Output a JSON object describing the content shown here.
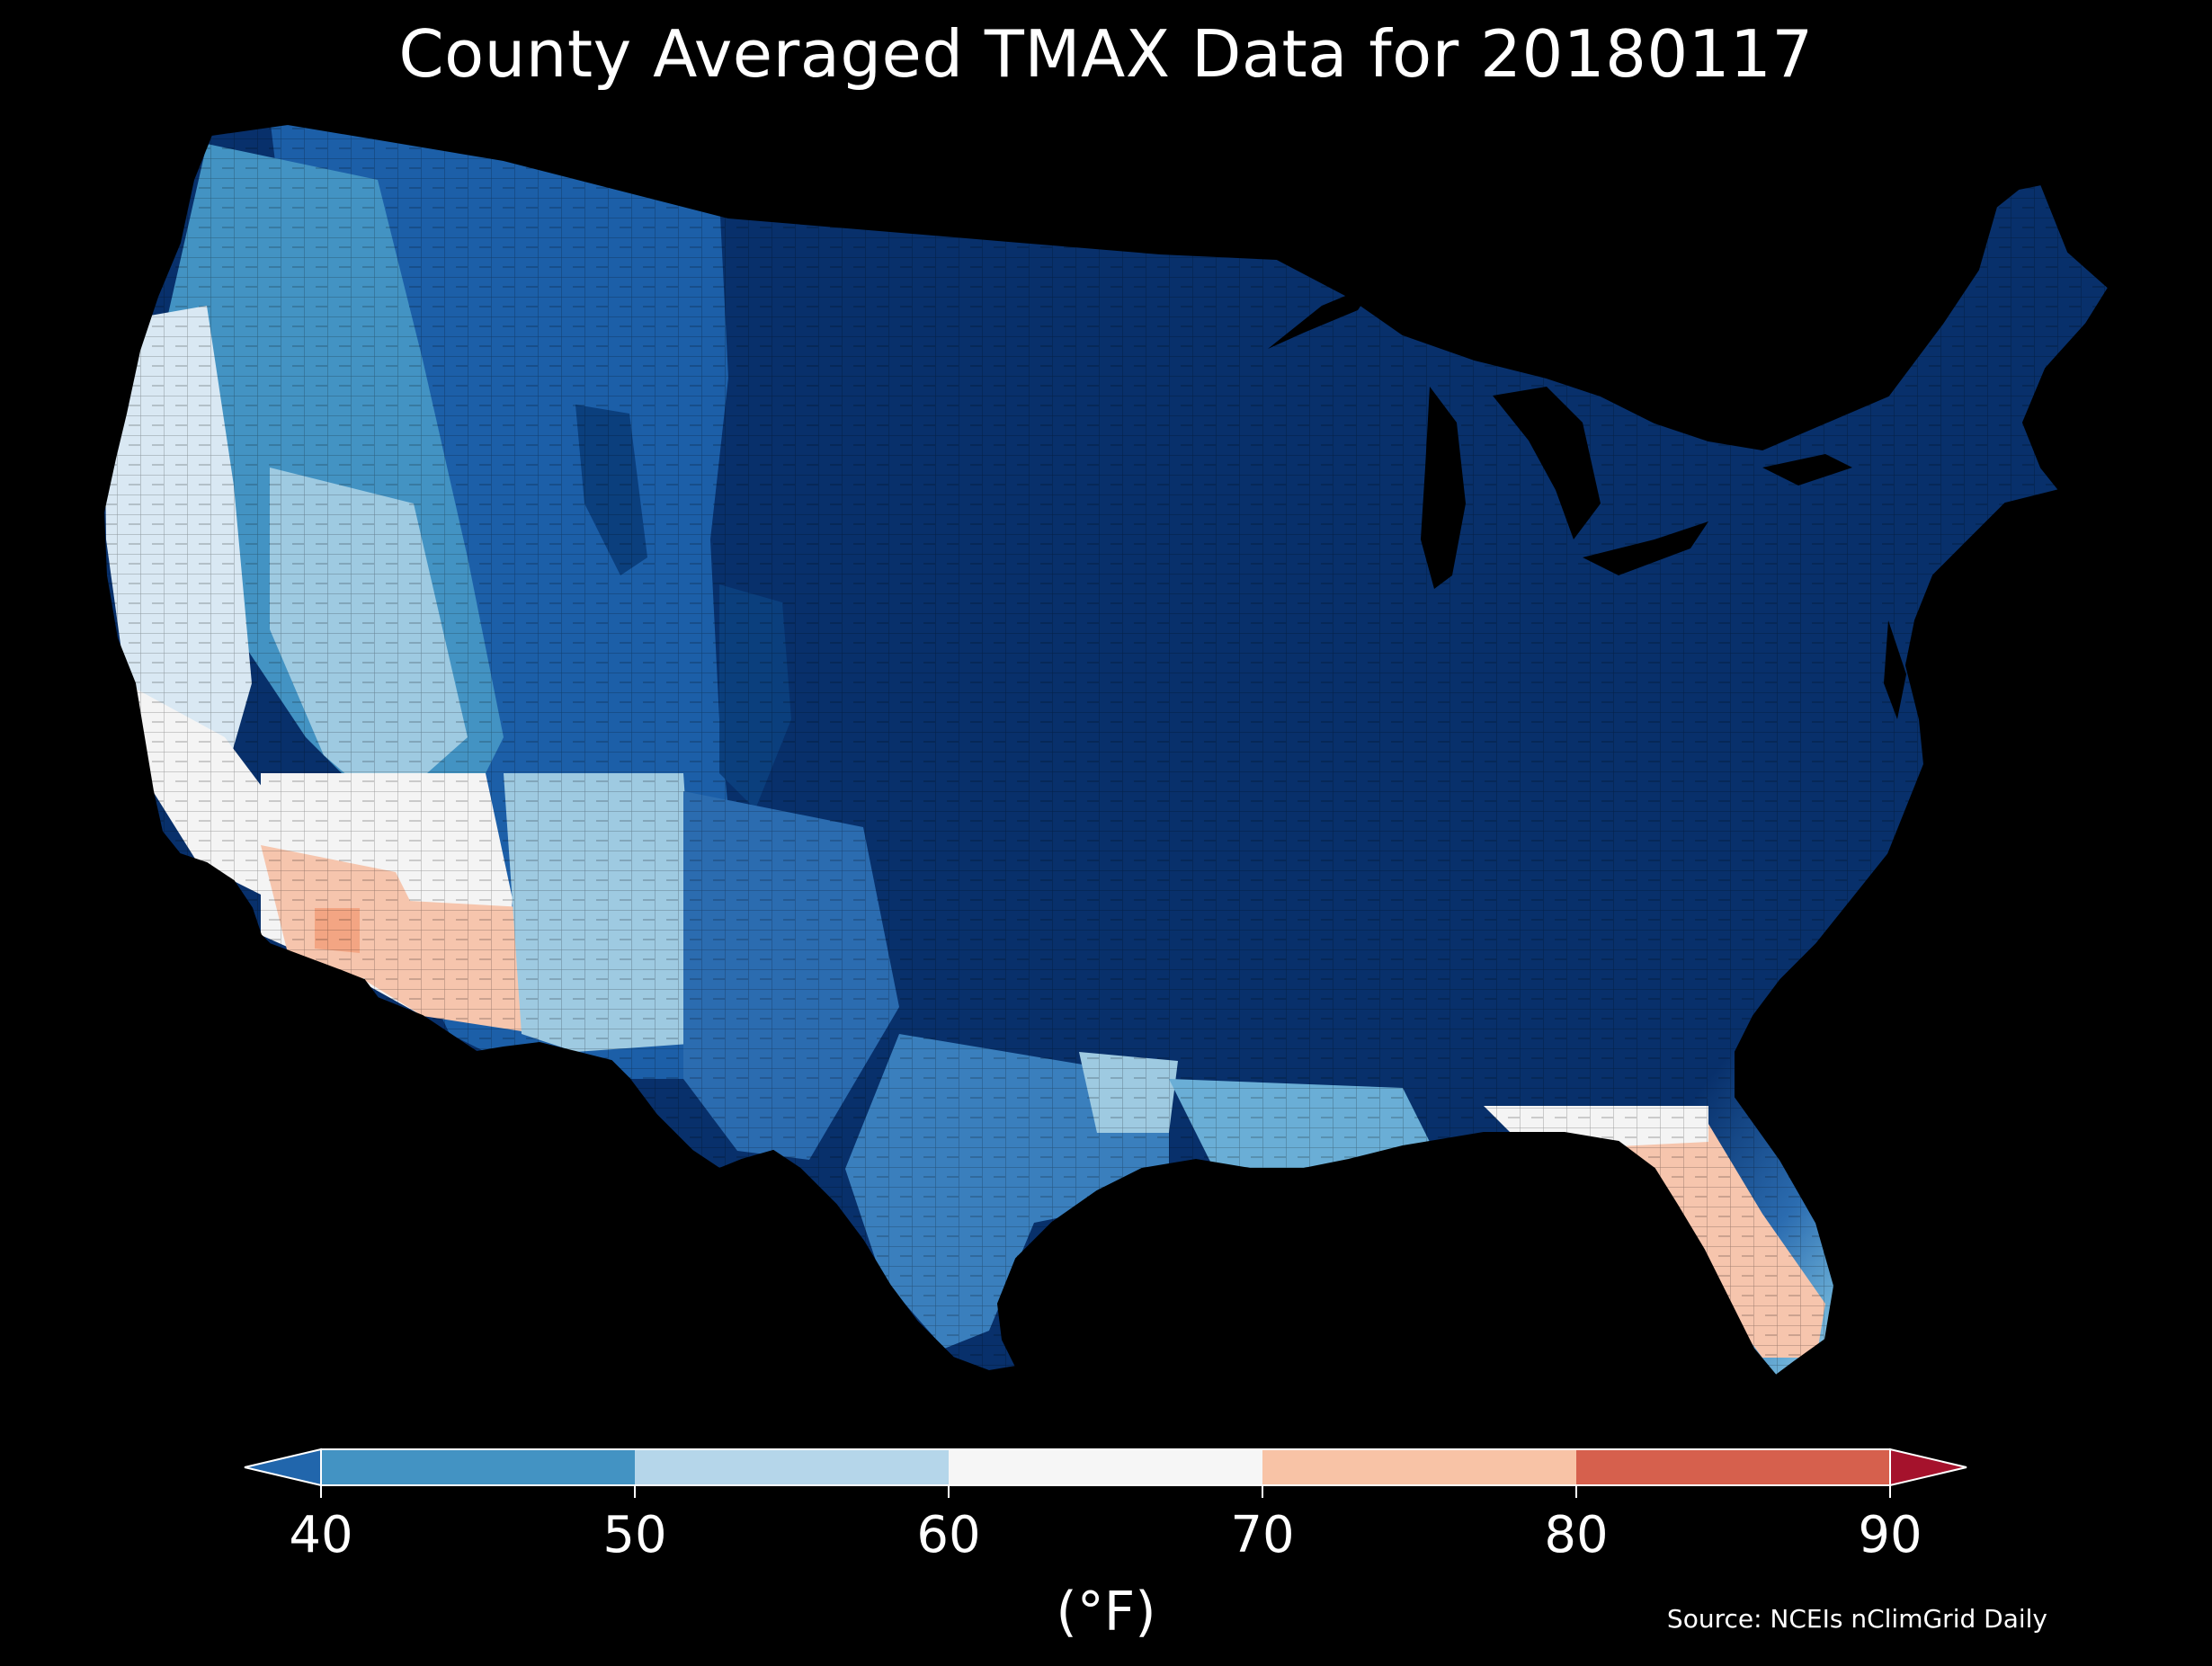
{
  "title": "County Averaged TMAX Data for 20180117",
  "source": "Source: NCEIs nClimGrid Daily",
  "colorbar": {
    "unit_label": "(°F)",
    "ticks": [
      "40",
      "50",
      "60",
      "70",
      "80",
      "90"
    ],
    "bins": [
      {
        "from": 40,
        "to": 50,
        "color": "#4393c3"
      },
      {
        "from": 50,
        "to": 60,
        "color": "#b5d6ea"
      },
      {
        "from": 60,
        "to": 70,
        "color": "#f6f6f6"
      },
      {
        "from": 70,
        "to": 80,
        "color": "#f8c3a6"
      },
      {
        "from": 80,
        "to": 90,
        "color": "#d6604d"
      }
    ],
    "under_color": "#2166ac",
    "over_color": "#a5122c"
  },
  "map": {
    "subject": "contiguous-united-states-counties",
    "colors": {
      "coldest": "#08306b",
      "deep": "#0b3f7d",
      "cold": "#1c5fa8",
      "cool": "#4393c3",
      "mild": "#9ecae1",
      "pale": "#d9e8f3",
      "neutral": "#f4f4f4",
      "warm": "#f6c5ad",
      "hot": "#f3a583"
    }
  }
}
